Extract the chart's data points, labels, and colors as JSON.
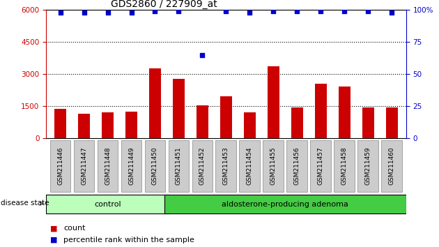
{
  "title": "GDS2860 / 227909_at",
  "samples": [
    "GSM211446",
    "GSM211447",
    "GSM211448",
    "GSM211449",
    "GSM211450",
    "GSM211451",
    "GSM211452",
    "GSM211453",
    "GSM211454",
    "GSM211455",
    "GSM211456",
    "GSM211457",
    "GSM211458",
    "GSM211459",
    "GSM211460"
  ],
  "counts": [
    1380,
    1150,
    1230,
    1260,
    3280,
    2780,
    1530,
    1950,
    1200,
    3380,
    1450,
    2550,
    2430,
    1450,
    1430
  ],
  "percentiles": [
    98,
    98,
    98,
    98,
    99,
    99,
    65,
    99,
    98,
    99,
    99,
    99,
    99,
    99,
    98
  ],
  "bar_color": "#cc0000",
  "dot_color": "#0000cc",
  "ylim_left": [
    0,
    6000
  ],
  "ylim_right": [
    0,
    100
  ],
  "yticks_left": [
    0,
    1500,
    3000,
    4500,
    6000
  ],
  "yticks_right": [
    0,
    25,
    50,
    75,
    100
  ],
  "groups": [
    {
      "label": "control",
      "start": 0,
      "end": 5,
      "color": "#bbffbb"
    },
    {
      "label": "aldosterone-producing adenoma",
      "start": 5,
      "end": 15,
      "color": "#44cc44"
    }
  ],
  "disease_state_label": "disease state",
  "legend_count_label": "count",
  "legend_percentile_label": "percentile rank within the sample",
  "bg_color": "#ffffff",
  "tick_bg_color": "#cccccc",
  "title_fontsize": 10,
  "axis_fontsize": 7.5,
  "label_fontsize": 6.5,
  "group_fontsize": 8,
  "legend_fontsize": 8
}
